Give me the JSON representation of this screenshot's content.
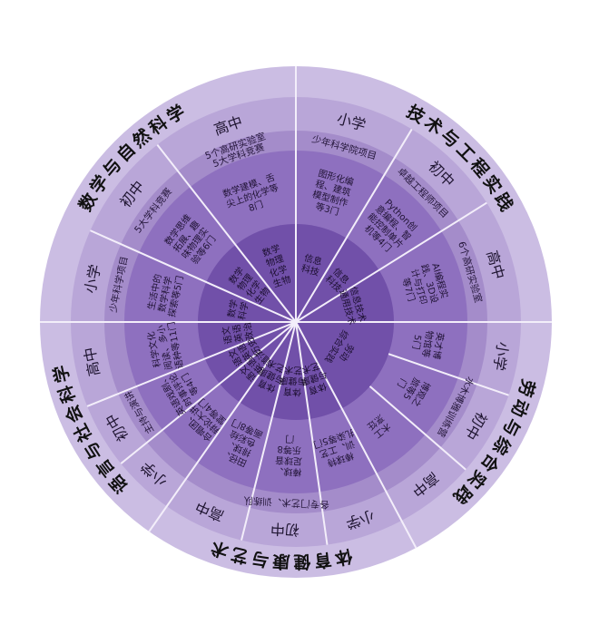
{
  "colors": {
    "ring_outer": "#cbbde3",
    "ring_level": "#b9a6d8",
    "ring_program": "#a48cca",
    "ring_course": "#8e70bf",
    "ring_subject": "#7150a9",
    "divider": "#f3eefa"
  },
  "domains": [
    {
      "title": "技术与工程实践",
      "levels": [
        {
          "label": "小学",
          "program": [
            "少年科学院项目"
          ],
          "courses": [
            "图形化编",
            "程、建筑",
            "模型制作",
            "等3门"
          ],
          "subject": [
            "信息",
            "科技"
          ]
        },
        {
          "label": "初中",
          "program": [
            "卓越工程师项目"
          ],
          "courses": [
            "Python创",
            "意编程、智",
            "能控制单片",
            "机等4门"
          ],
          "subject": [
            "信息",
            "科技"
          ]
        },
        {
          "label": "高中",
          "program": [
            "6个高研实验室"
          ],
          "courses": [
            "AI编程实",
            "践、3D设",
            "计与打印",
            "等7门"
          ],
          "subject": [
            "信息技术",
            "通用技术"
          ]
        }
      ]
    },
    {
      "title": "劳动与综合实践",
      "program": [
        "水木博雅训练营"
      ],
      "subject": [
        "劳动",
        "综合实践"
      ],
      "levels": [
        {
          "label": "小学",
          "courses": [
            "英才博",
            "物馆等",
            "5门"
          ]
        },
        {
          "label": "初中",
          "courses": [
            "博观之",
            "旅等5",
            "门"
          ]
        },
        {
          "label": "高中",
          "courses": [
            "木工",
            "烹饪"
          ]
        }
      ]
    },
    {
      "title": "体育健康与艺术",
      "program": [
        "各专门艺术、训练队"
      ],
      "levels": [
        {
          "label": "小学",
          "courses": [
            "棒球特",
            "训、工艺",
            "扎染等5门"
          ],
          "subject": [
            "体育",
            "与健康",
            "艺术"
          ]
        },
        {
          "label": "初中",
          "courses": [
            "棒球、",
            "足球音",
            "乐等8",
            "门"
          ],
          "subject": [
            "体育",
            "与健康",
            "艺术"
          ]
        },
        {
          "label": "高中",
          "courses": [
            "田径、",
            "排球、",
            "色彩绘",
            "画等8门"
          ],
          "subject": [
            "体育",
            "与健康",
            "艺术"
          ]
        }
      ]
    },
    {
      "title": "语言与社会科学",
      "program": [
        "主持与演讲"
      ],
      "levels": [
        {
          "label": "小学",
          "courses": [
            "合唱团、",
            "辩论大讲",
            "堂等4门"
          ],
          "subject": [
            "语文",
            "英语",
            "道法"
          ]
        },
        {
          "label": "初中",
          "courses": [
            "英语戏剧、",
            "时事评论",
            "等4门"
          ],
          "subject": [
            "语文",
            "英语",
            "历史"
          ]
        },
        {
          "label": "高中",
          "courses": [
            "科学文化",
            "阅读、多小",
            "语种等11门"
          ],
          "subject": [
            "语文",
            "英语",
            "政治"
          ]
        }
      ]
    },
    {
      "title": "数学与自然科学",
      "levels": [
        {
          "label": "小学",
          "program": [
            "少年科学项目"
          ],
          "courses": [
            "生活中的",
            "数学科学",
            "探索等5门"
          ],
          "subject": [
            "数学",
            "科学"
          ]
        },
        {
          "label": "初中",
          "program": [
            "5大学科竞赛"
          ],
          "courses": [
            "数学思维",
            "拓展、趣",
            "味物理实",
            "验等6门"
          ],
          "subject": [
            "数学",
            "物理",
            "化学",
            "生物"
          ]
        },
        {
          "label": "高中",
          "program": [
            "5个高研实验室",
            "5大学科竞赛"
          ],
          "courses": [
            "数学建模、舌",
            "尖上的化学等",
            "8门"
          ],
          "subject": [
            "数学",
            "物理",
            "化学",
            "生物"
          ]
        }
      ]
    }
  ]
}
